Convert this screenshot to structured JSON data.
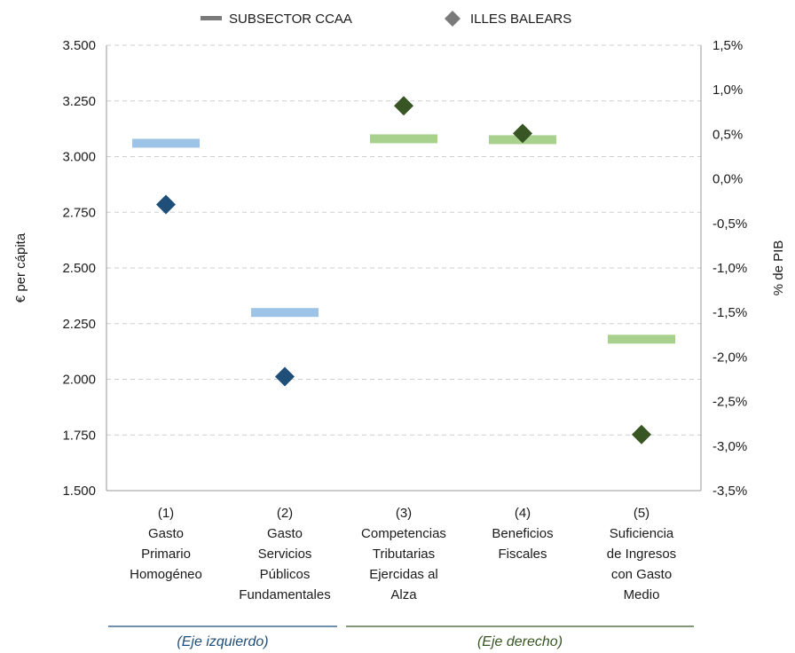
{
  "chart_data": {
    "type": "scatter",
    "legend": {
      "placement": "top-center",
      "entries": [
        {
          "label": "SUBSECTOR CCAA",
          "marker": "bar",
          "color": "#7a7a7a"
        },
        {
          "label": "ILLES BALEARS",
          "marker": "diamond",
          "color": "#7a7a7a"
        }
      ]
    },
    "categories": [
      [
        "(1)",
        "Gasto",
        "Primario",
        "Homogéneo"
      ],
      [
        "(2)",
        "Gasto",
        "Servicios",
        "Públicos",
        "Fundamentales"
      ],
      [
        "(3)",
        "Competencias",
        "Tributarias",
        "Ejercidas al",
        "Alza"
      ],
      [
        "(4)",
        "Beneficios",
        "Fiscales"
      ],
      [
        "(5)",
        "Suficiencia",
        "de Ingresos",
        "con Gasto",
        "Medio"
      ]
    ],
    "y_left": {
      "label": "€ per cápita",
      "ylim": [
        1500,
        3500
      ],
      "ticks": [
        "1.500",
        "1.750",
        "2.000",
        "2.250",
        "2.500",
        "2.750",
        "3.000",
        "3.250",
        "3.500"
      ]
    },
    "y_right": {
      "label": "% de PIB",
      "ylim": [
        -3.5,
        1.5
      ],
      "ticks": [
        "-3,5%",
        "-3,0%",
        "-2,5%",
        "-2,0%",
        "-1,5%",
        "-1,0%",
        "-0,5%",
        "0,0%",
        "0,5%",
        "1,0%",
        "1,5%"
      ]
    },
    "series": [
      {
        "name": "SUBSECTOR CCAA",
        "marker": "bar",
        "points": [
          {
            "category_index": 0,
            "axis": "left",
            "value": 3060,
            "color": "#9dc3e6"
          },
          {
            "category_index": 1,
            "axis": "left",
            "value": 2300,
            "color": "#9dc3e6"
          },
          {
            "category_index": 2,
            "axis": "right",
            "value": 0.45,
            "color": "#a9d18e"
          },
          {
            "category_index": 3,
            "axis": "right",
            "value": 0.44,
            "color": "#a9d18e"
          },
          {
            "category_index": 4,
            "axis": "right",
            "value": -1.8,
            "color": "#a9d18e"
          }
        ]
      },
      {
        "name": "ILLES BALEARS",
        "marker": "diamond",
        "points": [
          {
            "category_index": 0,
            "axis": "left",
            "value": 2785,
            "color": "#1f4e79"
          },
          {
            "category_index": 1,
            "axis": "left",
            "value": 2012,
            "color": "#1f4e79"
          },
          {
            "category_index": 2,
            "axis": "right",
            "value": 0.82,
            "color": "#375623"
          },
          {
            "category_index": 3,
            "axis": "right",
            "value": 0.51,
            "color": "#375623"
          },
          {
            "category_index": 4,
            "axis": "right",
            "value": -2.87,
            "color": "#375623"
          }
        ]
      }
    ],
    "groups": [
      {
        "label": "(Eje izquierdo)",
        "color": "#1f4e79",
        "categories": [
          0,
          1
        ]
      },
      {
        "label": "(Eje derecho)",
        "color": "#375623",
        "categories": [
          2,
          3,
          4
        ]
      }
    ],
    "grid": true
  }
}
